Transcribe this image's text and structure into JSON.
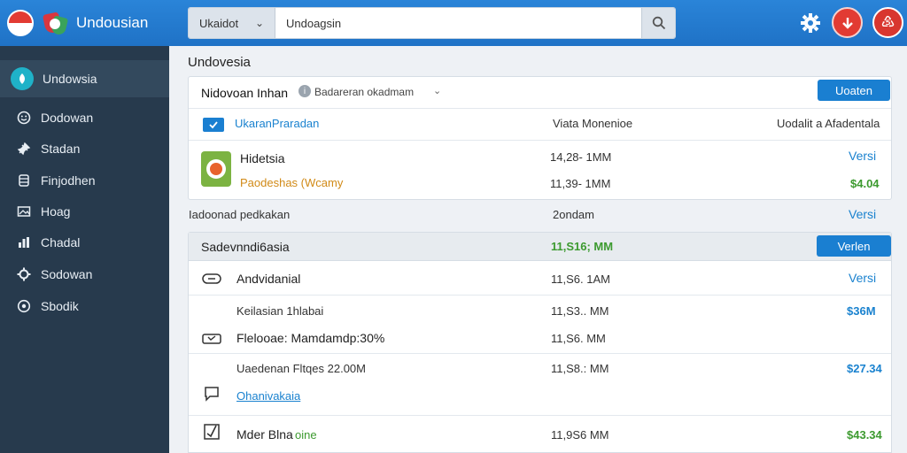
{
  "topbar": {
    "brand_name": "Undousian",
    "search_scope": "Ukaidot",
    "search_value": "Undoagsin",
    "search_placeholder": "Undoagsin"
  },
  "sidebar": {
    "active_item": "Undowsia",
    "items": [
      {
        "label": "Dodowan",
        "icon": "smiley-icon"
      },
      {
        "label": "Stadan",
        "icon": "pin-icon"
      },
      {
        "label": "Finjodhen",
        "icon": "database-icon"
      },
      {
        "label": "Hoag",
        "icon": "image-icon"
      },
      {
        "label": "Chadal",
        "icon": "chart-icon"
      },
      {
        "label": "Sodowan",
        "icon": "gear-icon"
      },
      {
        "label": "Sbodik",
        "icon": "target-icon"
      }
    ]
  },
  "main": {
    "page_title": "Undovesia",
    "card1": {
      "title": "Nidovoan Inhan",
      "subtitle": "Badareran okadmam",
      "button": "Uoaten",
      "col1": "UkaranPraradan",
      "col2": "Viata Monenioe",
      "col3": "Uodalit a Afadentala",
      "item_name": "Hidetsia",
      "item_sub": "Paodeshas (Wcamy",
      "item_val1": "14,28- 1MM",
      "item_val2": "11,39- 1MM",
      "item_link": "Versi",
      "item_price": "$4.04"
    },
    "summary": {
      "label": "Iadoonad pedkakan",
      "value": "2ondam",
      "link": "Versi"
    },
    "card2": {
      "title": "Sadevnndi6asia",
      "total": "11,S16; MM",
      "button": "Verlen",
      "rows": [
        {
          "name": "Andvidanial",
          "value": "11,S6. 1AM",
          "right": "Versi",
          "icon": "link-icon"
        },
        {
          "name": "Keilasian 1hlabai",
          "value": "11,S3.. MM",
          "right": "$36M",
          "icon": ""
        },
        {
          "name": "Flelooae: Mamdamdp:30%",
          "value": "11,S6. MM",
          "right": "",
          "icon": "ticket-icon"
        },
        {
          "name": "Uaedenan Fltqes 22.00M",
          "value": "11,S8.: MM",
          "right": "$27.34",
          "icon": ""
        },
        {
          "name": "Ohanivakaia",
          "value": "",
          "right": "",
          "icon": "chat-icon"
        },
        {
          "name": "Mder Blna",
          "name_suffix": "oine",
          "value": "11,9S6 MM",
          "right": "$43.34",
          "icon": "check-box-icon"
        }
      ]
    }
  }
}
